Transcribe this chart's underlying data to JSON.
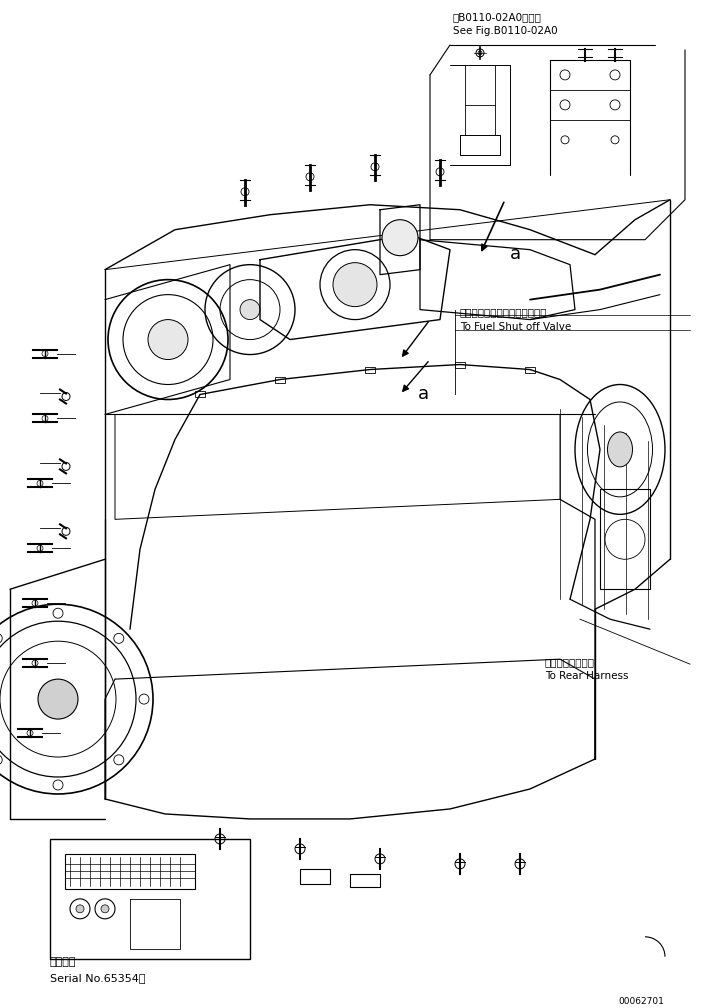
{
  "background_color": "#ffffff",
  "fig_width": 7.07,
  "fig_height": 10.08,
  "top_right_label1": "第B0110-02A0図参照",
  "top_right_label2": "See Fig.B0110-02A0",
  "fuel_label1": "フゥエルシャットオフバルブへ",
  "fuel_label2": "To Fuel Shut off Valve",
  "rear_label1": "リヤーハーネスへ",
  "rear_label2": "To Rear Harness",
  "bottom_left_label1": "適用号機",
  "bottom_left_label2": "Serial No.65354～",
  "part_number": "00062701"
}
